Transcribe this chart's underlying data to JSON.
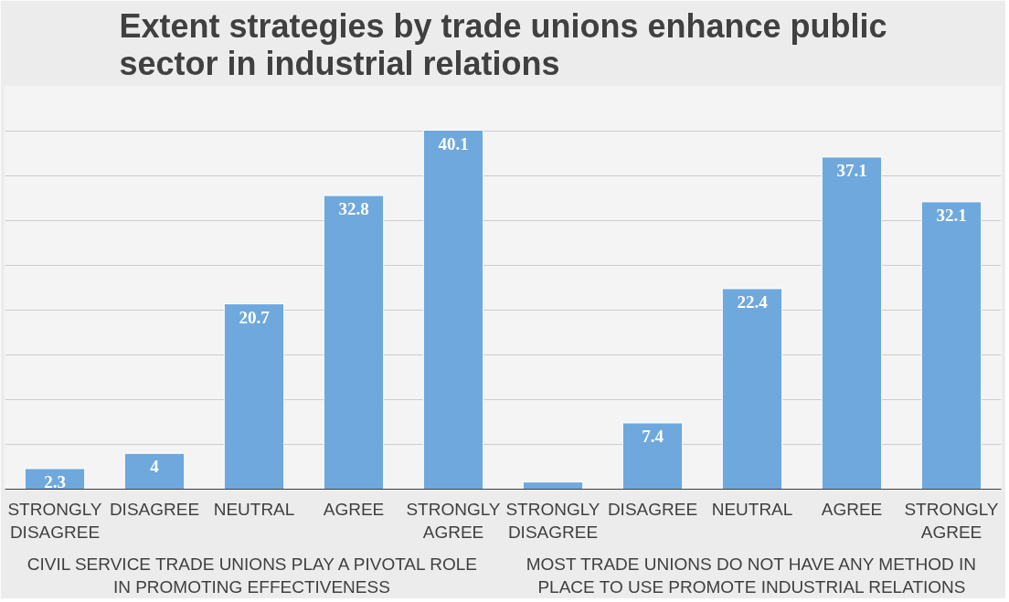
{
  "chart_data": {
    "type": "bar",
    "title": "Extent strategies by trade unions enhance public sector in industrial relations",
    "categories": [
      "STRONGLY DISAGREE",
      "DISAGREE",
      "NEUTRAL",
      "AGREE",
      "STRONGLY AGREE",
      "STRONGLY DISAGREE",
      "DISAGREE",
      "NEUTRAL",
      "AGREE",
      "STRONGLY AGREE"
    ],
    "values": [
      2.3,
      4,
      20.7,
      32.8,
      40.1,
      0.8,
      7.4,
      22.4,
      37.1,
      32.1
    ],
    "value_labels": [
      "2.3",
      "4",
      "20.7",
      "32.8",
      "40.1",
      null,
      "7.4",
      "22.4",
      "37.1",
      "32.1"
    ],
    "color": "#6fa8dc",
    "ylim": [
      0,
      45
    ],
    "yticks": [
      {
        "value": 0,
        "label": null
      },
      {
        "value": 5,
        "label": null
      },
      {
        "value": 10,
        "label": null
      },
      {
        "value": 15,
        "label": null
      },
      {
        "value": 20,
        "label": null
      },
      {
        "value": 25,
        "label": null
      },
      {
        "value": 30,
        "label": null
      },
      {
        "value": 35,
        "label": null
      },
      {
        "value": 40,
        "label": null
      },
      {
        "value": 45,
        "label": null
      }
    ],
    "grid": "y",
    "tick_labels": "x",
    "annotations": [
      "CIVIL SERVICE TRADE UNIONS PLAY A PIVOTAL ROLE IN PROMOTING  EFFECTIVENESS",
      "MOST TRADE UNIONS DO NOT HAVE ANY METHOD IN PLACE TO USE PROMOTE INDUSTRIAL RELATIONS"
    ]
  }
}
